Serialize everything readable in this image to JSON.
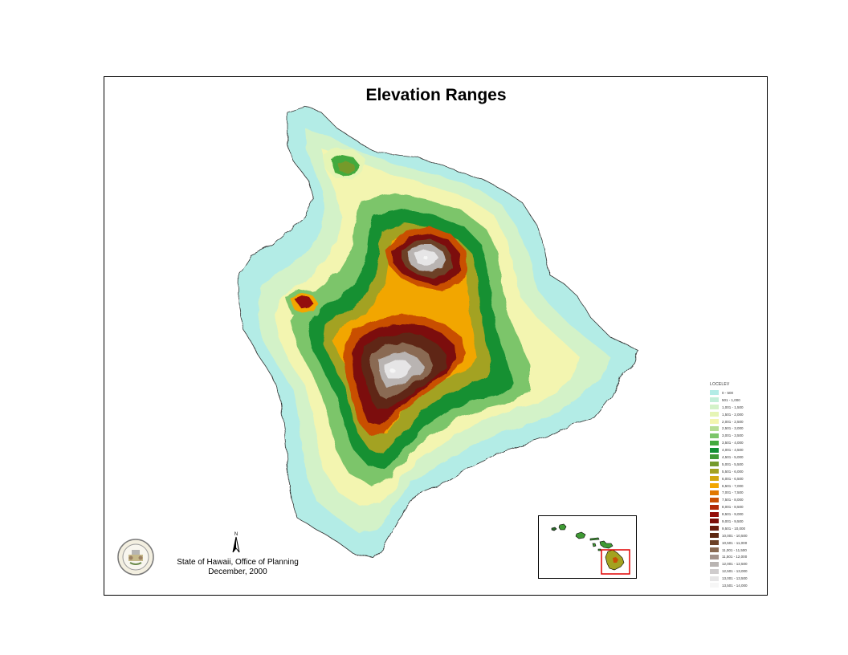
{
  "title": "Elevation Ranges",
  "legend": {
    "title": "LOCELEV",
    "items": [
      {
        "label": "0 - 500",
        "color": "#b3ece6"
      },
      {
        "label": "501 - 1,000",
        "color": "#c3efd9"
      },
      {
        "label": "1,001 - 1,500",
        "color": "#d3f2c8"
      },
      {
        "label": "1,501 - 2,000",
        "color": "#e6f5b5"
      },
      {
        "label": "2,001 - 2,500",
        "color": "#f3f5b0"
      },
      {
        "label": "2,501 - 3,000",
        "color": "#b7de96"
      },
      {
        "label": "3,001 - 3,500",
        "color": "#7cc56a"
      },
      {
        "label": "3,501 - 4,000",
        "color": "#43aa3e"
      },
      {
        "label": "4,001 - 4,500",
        "color": "#129033"
      },
      {
        "label": "4,501 - 5,000",
        "color": "#3f9a34"
      },
      {
        "label": "5,001 - 5,500",
        "color": "#759a2c"
      },
      {
        "label": "5,501 - 6,000",
        "color": "#a3a220"
      },
      {
        "label": "6,001 - 6,500",
        "color": "#d3a80e"
      },
      {
        "label": "6,501 - 7,000",
        "color": "#f2a600"
      },
      {
        "label": "7,001 - 7,500",
        "color": "#e17700"
      },
      {
        "label": "7,501 - 8,000",
        "color": "#c94f04"
      },
      {
        "label": "8,001 - 8,500",
        "color": "#b22a07"
      },
      {
        "label": "8,501 - 9,000",
        "color": "#930c08"
      },
      {
        "label": "9,001 - 9,500",
        "color": "#7c0d09"
      },
      {
        "label": "9,501 - 10,000",
        "color": "#6a1a0d"
      },
      {
        "label": "10,001 - 10,500",
        "color": "#5e2812"
      },
      {
        "label": "10,501 - 11,000",
        "color": "#6d4125"
      },
      {
        "label": "11,001 - 11,500",
        "color": "#8a6a52"
      },
      {
        "label": "11,501 - 12,000",
        "color": "#a3928a"
      },
      {
        "label": "12,001 - 12,500",
        "color": "#b9b4b2"
      },
      {
        "label": "12,501 - 13,000",
        "color": "#cfcccd"
      },
      {
        "label": "13,001 - 13,500",
        "color": "#e6e5e6"
      },
      {
        "label": "13,501 - 14,000",
        "color": "#f6f6f6"
      }
    ]
  },
  "credit": {
    "line1": "State of Hawaii, Office of Planning",
    "line2": "December, 2000"
  },
  "north_arrow": {
    "label": "N"
  },
  "colors": {
    "frame": "#000000",
    "inset_highlight": "#e00000"
  }
}
